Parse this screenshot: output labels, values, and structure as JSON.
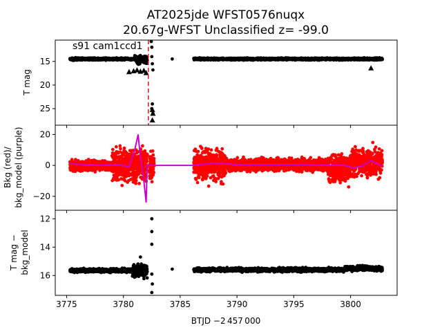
{
  "figure": {
    "title_line1": "AT2025jde  WFST0576nuqx",
    "title_line2": "20.67g-WFST Unclassified z= -99.0",
    "xlabel": "BTJD −2 457 000",
    "annotation": "s91 cam1ccd1"
  },
  "chart_data": [
    {
      "type": "scatter",
      "title": "AT2025jde  WFST0576nuqx / 20.67g-WFST Unclassified z= -99.0",
      "ylabel": "T mag",
      "xlim": [
        3774.0,
        3804.1
      ],
      "ylim": [
        28.5,
        10.5
      ],
      "inverted_y": true,
      "xticks": [
        3775,
        3780,
        3785,
        3790,
        3795,
        3800
      ],
      "yticks": [
        15,
        20,
        25
      ],
      "ytick_labels": [
        "15",
        "20",
        "25"
      ],
      "annotation": "s91 cam1ccd1",
      "vline": {
        "x": 3782.2,
        "color": "#d62728",
        "style": "dashed"
      },
      "colors": {
        "points": "#000000"
      },
      "segments": [
        {
          "x0": 3775.3,
          "x1": 3781.0,
          "y": 14.5,
          "noise": 0.25
        },
        {
          "x0": 3781.0,
          "x1": 3782.1,
          "y": 14.6,
          "noise": 0.9
        },
        {
          "x0": 3786.2,
          "x1": 3802.8,
          "y": 14.5,
          "noise": 0.25
        }
      ],
      "outliers": [
        {
          "x": 3782.45,
          "y": 10.5
        },
        {
          "x": 3782.5,
          "y": 12.0
        },
        {
          "x": 3782.5,
          "y": 14.0
        },
        {
          "x": 3782.55,
          "y": 15.5
        },
        {
          "x": 3782.6,
          "y": 16.8
        },
        {
          "x": 3784.3,
          "y": 14.5
        },
        {
          "x": 3782.55,
          "y": 24.0
        },
        {
          "x": 3782.5,
          "y": 25.0
        },
        {
          "x": 3782.6,
          "y": 26.0
        }
      ],
      "upper_limits": [
        {
          "x": 3780.5,
          "y": 17.2
        },
        {
          "x": 3780.9,
          "y": 17.0
        },
        {
          "x": 3781.2,
          "y": 16.8
        },
        {
          "x": 3781.5,
          "y": 17.1
        },
        {
          "x": 3781.8,
          "y": 16.9
        },
        {
          "x": 3782.0,
          "y": 17.4
        },
        {
          "x": 3782.55,
          "y": 25.2
        },
        {
          "x": 3782.6,
          "y": 26.0
        },
        {
          "x": 3782.55,
          "y": 27.4
        },
        {
          "x": 3801.8,
          "y": 16.4
        }
      ]
    },
    {
      "type": "scatter",
      "ylabel": "Bkg (red)/ bkg_model (purple)",
      "ylabel_line1": "Bkg (red)/",
      "ylabel_line2": "bkg_model (purple)",
      "xlim": [
        3774.0,
        3804.1
      ],
      "ylim": [
        -29,
        26
      ],
      "xticks": [
        3775,
        3780,
        3785,
        3790,
        3795,
        3800
      ],
      "yticks": [
        -20,
        0,
        20
      ],
      "ytick_labels": [
        "−20",
        "0",
        "20"
      ],
      "colors": {
        "bkg": "#ff0000",
        "model": "#cc00cc"
      },
      "bkg_segments": [
        {
          "x0": 3775.3,
          "x1": 3779.0,
          "y": 0.0,
          "noise": 3.5
        },
        {
          "x0": 3779.0,
          "x1": 3782.1,
          "y": 0.0,
          "noise": 11.0
        },
        {
          "x0": 3782.3,
          "x1": 3782.7,
          "y": 0.0,
          "noise": 10.0
        },
        {
          "x0": 3786.2,
          "x1": 3789.0,
          "y": 0.0,
          "noise": 10.0
        },
        {
          "x0": 3789.0,
          "x1": 3798.0,
          "y": 0.5,
          "noise": 4.0
        },
        {
          "x0": 3798.0,
          "x1": 3800.0,
          "y": -2.0,
          "noise": 10.0
        },
        {
          "x0": 3800.0,
          "x1": 3802.8,
          "y": 2.0,
          "noise": 9.0
        }
      ],
      "model": {
        "x": [
          3775.3,
          3776.5,
          3778.0,
          3779.5,
          3780.5,
          3781.0,
          3781.3,
          3781.5,
          3781.8,
          3782.0,
          3782.1,
          3782.3,
          3784.5,
          3786.2,
          3788.0,
          3790.0,
          3793.0,
          3796.0,
          3798.0,
          3799.5,
          3800.2,
          3801.0,
          3801.8,
          3802.8
        ],
        "y": [
          1.0,
          0.5,
          0.0,
          0.5,
          -1.0,
          10.0,
          20.0,
          5.0,
          -10.0,
          -24.0,
          0.0,
          0.0,
          0.0,
          0.0,
          1.5,
          0.5,
          0.5,
          0.5,
          0.0,
          0.0,
          -1.5,
          -0.5,
          3.0,
          -0.5
        ]
      }
    },
    {
      "type": "scatter",
      "ylabel": "T mag − bkg_model",
      "ylabel_line1": "T mag −",
      "ylabel_line2": "bkg_model",
      "xlim": [
        3774.0,
        3804.1
      ],
      "ylim": [
        17.4,
        11.4
      ],
      "inverted_y": true,
      "xticks": [
        3775,
        3780,
        3785,
        3790,
        3795,
        3800
      ],
      "xtick_labels": [
        "3775",
        "3780",
        "3785",
        "3790",
        "3795",
        "3800"
      ],
      "yticks": [
        12,
        14,
        16
      ],
      "ytick_labels": [
        "12",
        "14",
        "16"
      ],
      "colors": {
        "points": "#000000"
      },
      "segments": [
        {
          "x0": 3775.3,
          "x1": 3780.8,
          "y": 15.65,
          "noise": 0.15
        },
        {
          "x0": 3780.8,
          "x1": 3782.1,
          "y": 15.7,
          "noise": 0.55
        },
        {
          "x0": 3786.2,
          "x1": 3799.5,
          "y": 15.6,
          "noise": 0.15
        },
        {
          "x0": 3799.5,
          "x1": 3802.8,
          "y": 15.5,
          "noise": 0.2
        }
      ],
      "outliers": [
        {
          "x": 3782.5,
          "y": 12.0
        },
        {
          "x": 3782.5,
          "y": 12.9
        },
        {
          "x": 3782.5,
          "y": 13.8
        },
        {
          "x": 3782.5,
          "y": 15.9
        },
        {
          "x": 3782.55,
          "y": 16.6
        },
        {
          "x": 3782.5,
          "y": 17.2
        },
        {
          "x": 3781.5,
          "y": 14.7
        },
        {
          "x": 3784.3,
          "y": 15.55
        }
      ]
    }
  ]
}
